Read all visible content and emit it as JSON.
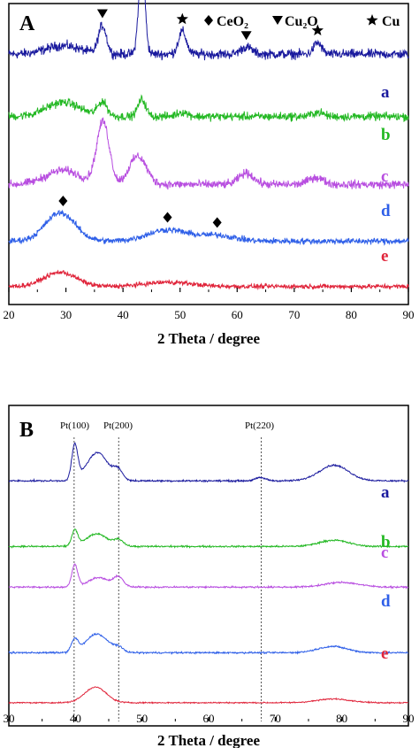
{
  "colors": {
    "a": "#1a1a9e",
    "b": "#22b822",
    "c": "#b84ee0",
    "d": "#2e5fe8",
    "e": "#e0243a",
    "frame": "#000000",
    "ref_line": "#555555"
  },
  "legend": [
    {
      "symbol": "diamond",
      "text": "CeO₂"
    },
    {
      "symbol": "triangle-down",
      "text": "Cu₂O"
    },
    {
      "symbol": "star",
      "text": "Cu"
    }
  ],
  "chart_data": [
    {
      "panel": "A",
      "type": "line",
      "xlabel": "2 Theta / degree",
      "ylabel": "",
      "xlim": [
        20,
        90
      ],
      "xticks": [
        20,
        30,
        40,
        50,
        60,
        70,
        80,
        90
      ],
      "yticks": false,
      "grid": false,
      "series": [
        {
          "name": "a",
          "offset": 0.84,
          "peaks": [
            [
              29.5,
              0.03,
              3
            ],
            [
              36.4,
              0.1,
              0.7
            ],
            [
              43.3,
              0.32,
              0.55
            ],
            [
              50.4,
              0.08,
              0.7
            ],
            [
              61.6,
              0.025,
              1
            ],
            [
              74.1,
              0.04,
              0.7
            ]
          ],
          "noise": 0.025
        },
        {
          "name": "b",
          "offset": 0.62,
          "peaks": [
            [
              29.5,
              0.05,
              3
            ],
            [
              36.4,
              0.05,
              0.8
            ],
            [
              43.3,
              0.06,
              0.7
            ],
            [
              50.4,
              0.015,
              1
            ],
            [
              74.1,
              0.015,
              1
            ]
          ],
          "noise": 0.022
        },
        {
          "name": "c",
          "offset": 0.38,
          "peaks": [
            [
              29.5,
              0.05,
              3
            ],
            [
              36.5,
              0.22,
              1.1
            ],
            [
              42.6,
              0.1,
              1.5
            ],
            [
              61.6,
              0.04,
              1.3
            ],
            [
              73.8,
              0.025,
              1.3
            ]
          ],
          "noise": 0.022
        },
        {
          "name": "d",
          "offset": 0.18,
          "peaks": [
            [
              29.0,
              0.1,
              2.6
            ],
            [
              47.8,
              0.04,
              3.5
            ],
            [
              56.5,
              0.02,
              3
            ]
          ],
          "noise": 0.016
        },
        {
          "name": "e",
          "offset": 0.02,
          "peaks": [
            [
              29.0,
              0.05,
              2.8
            ],
            [
              48,
              0.015,
              4
            ]
          ],
          "noise": 0.012
        }
      ],
      "markers": [
        {
          "symbol": "triangle-down",
          "x": 36.4,
          "trace": "a"
        },
        {
          "symbol": "star",
          "x": 43.3,
          "trace": "a"
        },
        {
          "symbol": "star",
          "x": 50.4,
          "trace": "a"
        },
        {
          "symbol": "triangle-down",
          "x": 61.6,
          "trace": "a"
        },
        {
          "symbol": "star",
          "x": 74.1,
          "trace": "a"
        },
        {
          "symbol": "diamond",
          "x": 29.5,
          "trace": "d"
        },
        {
          "symbol": "diamond",
          "x": 47.8,
          "trace": "d"
        },
        {
          "symbol": "diamond",
          "x": 56.5,
          "trace": "d"
        }
      ]
    },
    {
      "panel": "B",
      "type": "line",
      "xlabel": "2 Theta / degree",
      "ylabel": "",
      "xlim": [
        30,
        90
      ],
      "xticks": [
        30,
        40,
        50,
        60,
        70,
        80,
        90
      ],
      "yticks": false,
      "grid": false,
      "reference_lines": [
        {
          "x": 39.8,
          "label": "Pt(100)"
        },
        {
          "x": 46.5,
          "label": "Pt(200)"
        },
        {
          "x": 67.9,
          "label": "Pt(220)"
        }
      ],
      "series": [
        {
          "name": "a",
          "offset": 0.77,
          "peaks": [
            [
              39.9,
              0.11,
              0.45
            ],
            [
              43.3,
              0.09,
              1.6
            ],
            [
              46.4,
              0.03,
              0.7
            ],
            [
              67.8,
              0.01,
              0.8
            ],
            [
              78.8,
              0.05,
              2.2
            ]
          ],
          "noise": 0.004
        },
        {
          "name": "b",
          "offset": 0.56,
          "peaks": [
            [
              39.9,
              0.05,
              0.45
            ],
            [
              43.2,
              0.04,
              1.6
            ],
            [
              46.5,
              0.02,
              0.7
            ],
            [
              78.8,
              0.02,
              2.2
            ]
          ],
          "noise": 0.004
        },
        {
          "name": "c",
          "offset": 0.43,
          "peaks": [
            [
              39.9,
              0.07,
              0.45
            ],
            [
              43.5,
              0.03,
              1.6
            ],
            [
              46.5,
              0.03,
              0.7
            ],
            [
              80,
              0.015,
              2.5
            ]
          ],
          "noise": 0.004
        },
        {
          "name": "d",
          "offset": 0.22,
          "peaks": [
            [
              39.9,
              0.04,
              0.5
            ],
            [
              43.2,
              0.06,
              1.6
            ],
            [
              46.4,
              0.015,
              0.8
            ],
            [
              78.6,
              0.02,
              2.2
            ]
          ],
          "noise": 0.004
        },
        {
          "name": "e",
          "offset": 0.06,
          "peaks": [
            [
              43.0,
              0.05,
              1.6
            ],
            [
              78.8,
              0.012,
              2.5
            ]
          ],
          "noise": 0.003
        }
      ]
    }
  ],
  "panel_letters": {
    "A": "A",
    "B": "B"
  },
  "axis_titles": {
    "A": "2 Theta / degree",
    "B": "2 Theta / degree"
  },
  "trace_labels": [
    "a",
    "b",
    "c",
    "d",
    "e"
  ],
  "ref_labels": [
    "Pt(100)",
    "Pt(200)",
    "Pt(220)"
  ]
}
